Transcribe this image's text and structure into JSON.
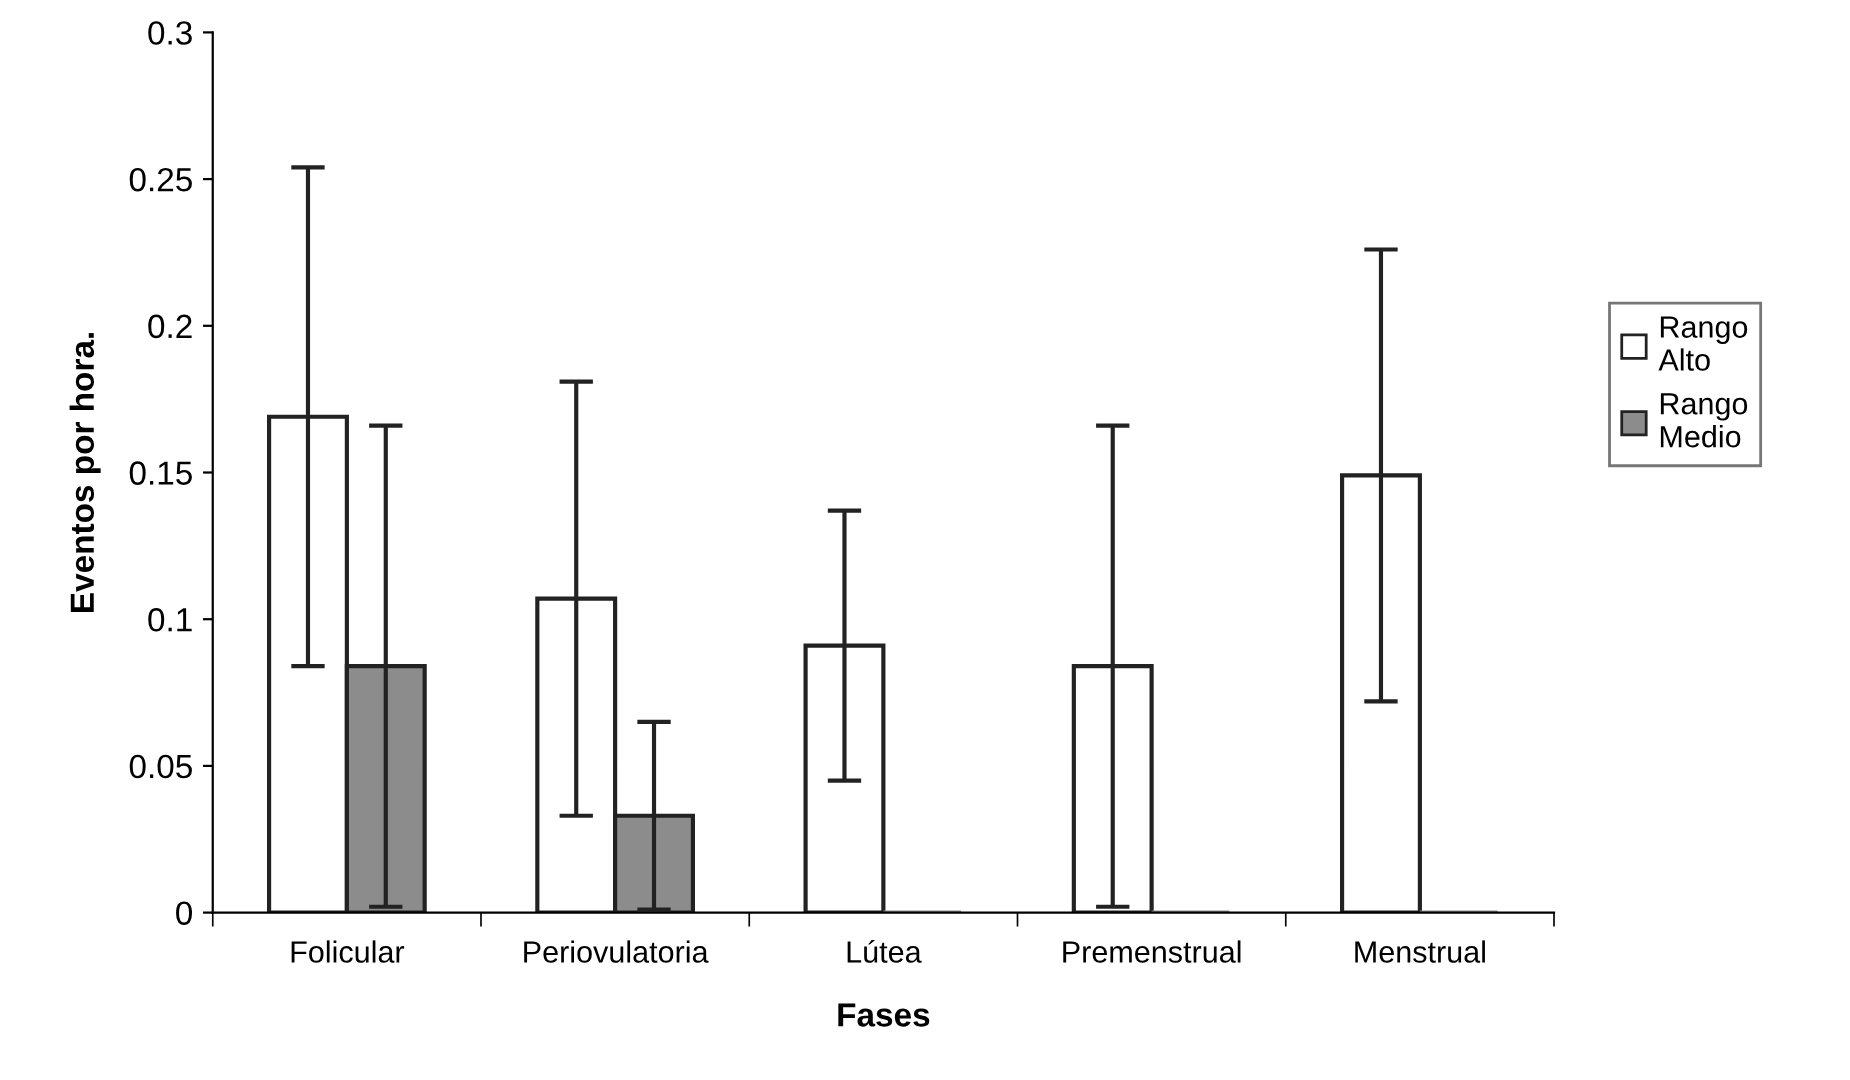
{
  "chart_data": {
    "type": "bar",
    "xlabel": "Fases",
    "ylabel": "Eventos por hora.",
    "categories": [
      "Folicular",
      "Periovulatoria",
      "Lútea",
      "Premenstrual",
      "Menstrual"
    ],
    "series": [
      {
        "name": "Rango Alto",
        "color": "#ffffff",
        "values": [
          0.169,
          0.107,
          0.091,
          0.084,
          0.149
        ],
        "errors": [
          0.085,
          0.074,
          0.046,
          0.082,
          0.077
        ]
      },
      {
        "name": "Rango Medio",
        "color": "#8c8c8c",
        "values": [
          0.084,
          0.033,
          0,
          0,
          0
        ],
        "errors": [
          0.082,
          0.032,
          null,
          null,
          null
        ]
      }
    ],
    "ylim": [
      0,
      0.3
    ],
    "yticks": [
      0,
      0.05,
      0.1,
      0.15,
      0.2,
      0.25,
      0.3
    ],
    "grid": false,
    "legend": "right"
  }
}
